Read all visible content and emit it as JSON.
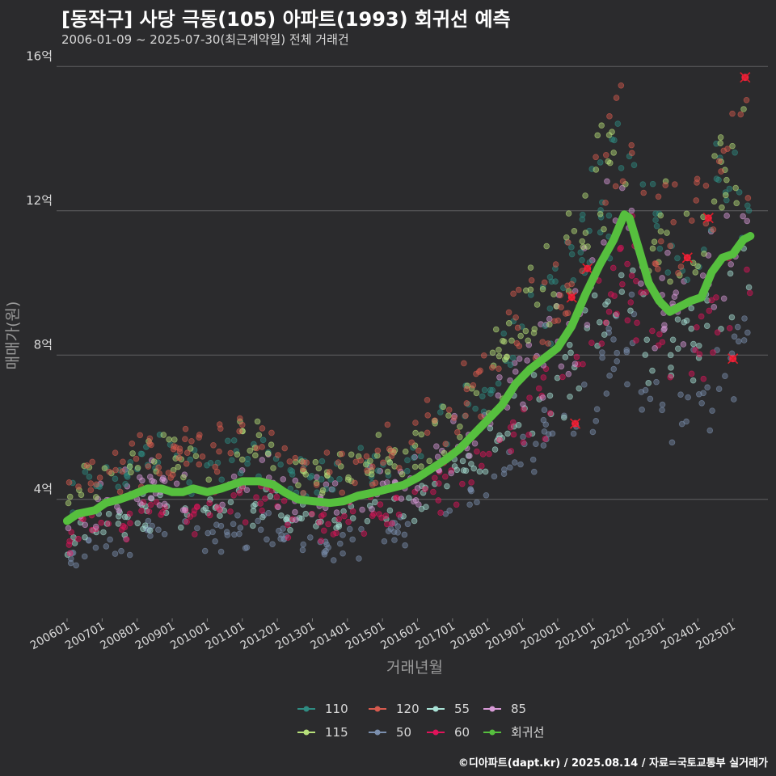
{
  "header": {
    "title": "[동작구] 사당 극동(105) 아파트(1993) 회귀선 예측",
    "subtitle": "2006-01-09 ~ 2025-07-30(최근계약일) 전체 거래건"
  },
  "footer": {
    "credit": "©디아파트(dapt.kr) / 2025.08.14 / 자료=국토교통부 실거래가"
  },
  "chart_data": {
    "type": "scatter",
    "title": "[동작구] 사당 극동(105) 아파트(1993) 회귀선 예측",
    "xlabel": "거래년월",
    "ylabel": "매매가(원)",
    "xlim": [
      2005.7,
      2026.0
    ],
    "ylim": [
      0.7,
      16.5
    ],
    "y_unit": "억",
    "yticks": [
      4,
      8,
      12,
      16
    ],
    "ytick_labels": [
      "4억",
      "8억",
      "12억",
      "16억"
    ],
    "xtick_values": [
      2006.0,
      2007.0,
      2008.0,
      2009.0,
      2010.0,
      2011.0,
      2012.0,
      2013.0,
      2014.0,
      2015.0,
      2016.0,
      2017.0,
      2018.0,
      2019.0,
      2020.0,
      2021.0,
      2022.0,
      2023.0,
      2024.0,
      2025.0
    ],
    "xtick_labels": [
      "200601",
      "200701",
      "200801",
      "200901",
      "201001",
      "201101",
      "201201",
      "201301",
      "201401",
      "201501",
      "201601",
      "201701",
      "201801",
      "201901",
      "202001",
      "202101",
      "202201",
      "202301",
      "202401",
      "202501"
    ],
    "grid": "horizontal",
    "legend": {
      "placement": "bottom",
      "items": [
        {
          "label": "110",
          "color": "#2f8c82"
        },
        {
          "label": "115",
          "color": "#b7e07a"
        },
        {
          "label": "120",
          "color": "#d65a4e"
        },
        {
          "label": "50",
          "color": "#7b8fae"
        },
        {
          "label": "55",
          "color": "#a9e2d6"
        },
        {
          "label": "60",
          "color": "#e0135a"
        },
        {
          "label": "85",
          "color": "#d79ad6"
        },
        {
          "label": "회귀선",
          "color": "#56bf3e"
        }
      ]
    },
    "series": [
      {
        "name": "50",
        "color": "#7b8fae",
        "offset": -1.3,
        "spread": 0.35,
        "period": [
          2006.0,
          2025.5
        ]
      },
      {
        "name": "55",
        "color": "#a9e2d6",
        "offset": -0.6,
        "spread": 0.35,
        "period": [
          2006.0,
          2025.5
        ]
      },
      {
        "name": "60",
        "color": "#e0135a",
        "offset": -0.6,
        "spread": 0.4,
        "period": [
          2006.0,
          2025.5
        ]
      },
      {
        "name": "85",
        "color": "#d79ad6",
        "offset": 0.1,
        "spread": 0.45,
        "period": [
          2006.0,
          2025.5
        ]
      },
      {
        "name": "110",
        "color": "#2f8c82",
        "offset": 0.7,
        "spread": 0.45,
        "period": [
          2006.0,
          2025.5
        ]
      },
      {
        "name": "115",
        "color": "#b7e07a",
        "offset": 0.9,
        "spread": 0.45,
        "period": [
          2006.0,
          2025.5
        ]
      },
      {
        "name": "120",
        "color": "#d65a4e",
        "offset": 1.0,
        "spread": 0.5,
        "period": [
          2006.0,
          2025.5
        ]
      }
    ],
    "regression": {
      "name": "회귀선",
      "color": "#56bf3e",
      "x": [
        2006.0,
        2006.3,
        2006.8,
        2007.1,
        2007.5,
        2007.8,
        2008.3,
        2008.7,
        2009.0,
        2009.3,
        2009.6,
        2010.0,
        2010.4,
        2010.7,
        2011.0,
        2011.5,
        2011.9,
        2012.2,
        2012.6,
        2013.0,
        2013.5,
        2013.9,
        2014.3,
        2014.8,
        2015.2,
        2015.6,
        2016.0,
        2016.4,
        2016.8,
        2017.2,
        2017.6,
        2018.0,
        2018.4,
        2018.8,
        2019.2,
        2019.6,
        2020.0,
        2020.4,
        2020.8,
        2021.2,
        2021.6,
        2021.9,
        2022.05,
        2022.3,
        2022.6,
        2022.9,
        2023.2,
        2023.5,
        2023.8,
        2024.1,
        2024.4,
        2024.7,
        2025.0,
        2025.3,
        2025.5
      ],
      "y": [
        3.4,
        3.6,
        3.7,
        3.9,
        4.0,
        4.1,
        4.3,
        4.3,
        4.2,
        4.2,
        4.3,
        4.2,
        4.3,
        4.4,
        4.5,
        4.5,
        4.4,
        4.2,
        4.0,
        3.95,
        3.9,
        3.95,
        4.1,
        4.2,
        4.3,
        4.4,
        4.6,
        4.85,
        5.1,
        5.4,
        5.8,
        6.2,
        6.6,
        7.2,
        7.6,
        7.9,
        8.2,
        8.8,
        9.7,
        10.5,
        11.2,
        11.9,
        11.8,
        11.0,
        10.0,
        9.5,
        9.2,
        9.35,
        9.5,
        9.6,
        10.3,
        10.7,
        10.8,
        11.2,
        11.3
      ]
    },
    "highlighted_points": [
      {
        "x": 2020.5,
        "y": 6.1
      },
      {
        "x": 2020.4,
        "y": 9.6
      },
      {
        "x": 2020.85,
        "y": 10.4
      },
      {
        "x": 2023.7,
        "y": 10.7
      },
      {
        "x": 2024.3,
        "y": 11.8
      },
      {
        "x": 2025.0,
        "y": 7.9
      },
      {
        "x": 2025.35,
        "y": 15.7
      }
    ]
  }
}
